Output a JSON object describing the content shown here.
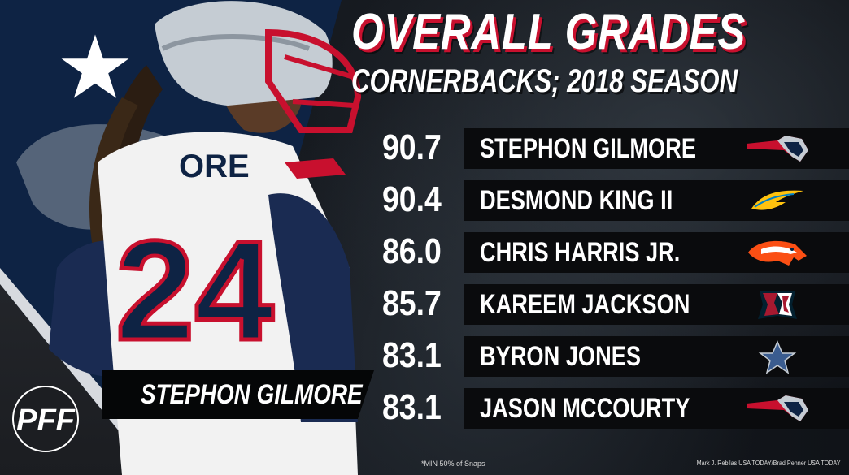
{
  "header": {
    "title": "Overall Grades",
    "subtitle": "Cornerbacks; 2018 Season"
  },
  "rankings": [
    {
      "grade": "90.7",
      "name": "Stephon Gilmore",
      "team_icon": "patriots-logo-icon"
    },
    {
      "grade": "90.4",
      "name": "Desmond King II",
      "team_icon": "chargers-logo-icon"
    },
    {
      "grade": "86.0",
      "name": "Chris Harris Jr.",
      "team_icon": "broncos-logo-icon"
    },
    {
      "grade": "85.7",
      "name": "Kareem Jackson",
      "team_icon": "texans-logo-icon"
    },
    {
      "grade": "83.1",
      "name": "Byron Jones",
      "team_icon": "cowboys-logo-icon"
    },
    {
      "grade": "83.1",
      "name": "Jason McCourty",
      "team_icon": "patriots-logo-icon"
    }
  ],
  "featured_player": {
    "name": "Stephon Gilmore",
    "jersey_number": "24",
    "jersey_name": "ORE"
  },
  "footer": {
    "footnote": "*MIN 50% of Snaps",
    "credit": "Mark J. Rebilas USA TODAY/Brad Penner USA TODAY"
  },
  "brand": {
    "logo_icon": "pff-logo-icon",
    "logo_text": "PFF"
  },
  "colors": {
    "navy": "#0e2344",
    "red": "#c8102e",
    "silver": "#b0b7bf",
    "bar": "#0a0b0d",
    "white": "#ffffff"
  }
}
